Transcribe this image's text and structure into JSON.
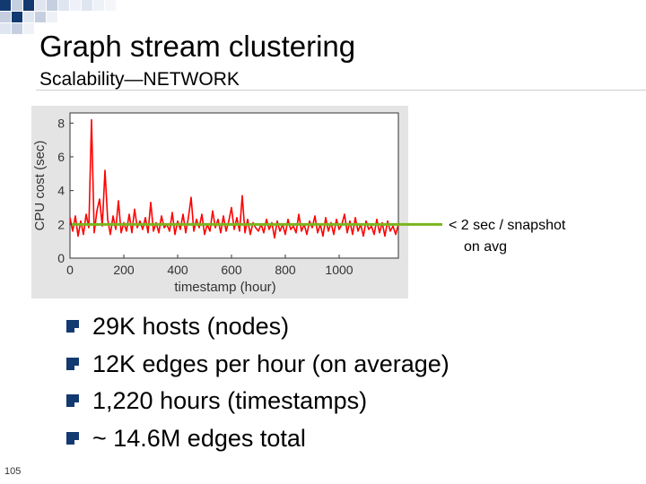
{
  "slide": {
    "title": "Graph stream clustering",
    "subtitle": "Scalability—NETWORK",
    "page_number": "105",
    "accent_color": "#123a70",
    "annotation": [
      "< 2 sec / snapshot",
      "on avg"
    ],
    "bullets": [
      "29K hosts (nodes)",
      "12K edges per hour (on average)",
      "1,220 hours (timestamps)",
      "~ 14.6M edges total"
    ]
  },
  "chart_data": {
    "type": "line",
    "xlabel": "timestamp (hour)",
    "ylabel": "CPU cost (sec)",
    "xlim": [
      0,
      1220
    ],
    "ylim": [
      0,
      8.6
    ],
    "x_ticks": [
      "0",
      "200",
      "400",
      "600",
      "800",
      "1000"
    ],
    "y_ticks": [
      "0",
      "2",
      "4",
      "6",
      "8"
    ],
    "grid": false,
    "series": [
      {
        "color": "#ff0000",
        "x": [
          0,
          10,
          20,
          30,
          40,
          50,
          60,
          70,
          80,
          90,
          100,
          110,
          120,
          130,
          140,
          150,
          160,
          170,
          180,
          190,
          200,
          210,
          220,
          230,
          240,
          250,
          260,
          270,
          280,
          290,
          300,
          310,
          320,
          330,
          340,
          350,
          360,
          370,
          380,
          390,
          400,
          410,
          420,
          430,
          440,
          450,
          460,
          470,
          480,
          490,
          500,
          510,
          520,
          530,
          540,
          550,
          560,
          570,
          580,
          590,
          600,
          610,
          620,
          630,
          640,
          650,
          660,
          670,
          680,
          690,
          700,
          710,
          720,
          730,
          740,
          750,
          760,
          770,
          780,
          790,
          800,
          810,
          820,
          830,
          840,
          850,
          860,
          870,
          880,
          890,
          900,
          910,
          920,
          930,
          940,
          950,
          960,
          970,
          980,
          990,
          1000,
          1010,
          1020,
          1030,
          1040,
          1050,
          1060,
          1070,
          1080,
          1090,
          1100,
          1110,
          1120,
          1130,
          1140,
          1150,
          1160,
          1170,
          1180,
          1190,
          1200,
          1210,
          1220
        ],
        "values": [
          2.4,
          1.6,
          2.5,
          1.3,
          2.2,
          1.4,
          2.6,
          1.8,
          8.2,
          1.5,
          2.8,
          3.5,
          1.9,
          5.2,
          2.3,
          1.4,
          2.5,
          1.7,
          3.4,
          1.5,
          2.1,
          1.6,
          2.6,
          1.5,
          2.9,
          1.8,
          2.2,
          1.7,
          2.4,
          1.5,
          3.3,
          1.6,
          2.1,
          1.5,
          2.5,
          1.8,
          2.0,
          1.6,
          2.7,
          1.4,
          2.2,
          1.7,
          2.6,
          1.5,
          2.4,
          3.6,
          1.6,
          2.3,
          1.8,
          2.6,
          1.4,
          2.0,
          1.6,
          2.8,
          1.8,
          2.3,
          1.5,
          2.5,
          1.6,
          2.2,
          3.0,
          1.7,
          2.4,
          1.6,
          3.7,
          1.5,
          2.3,
          1.4,
          2.1,
          1.8,
          1.6,
          2.0,
          1.5,
          2.3,
          1.7,
          2.1,
          1.2,
          2.2,
          1.6,
          2.0,
          1.4,
          2.3,
          1.7,
          1.9,
          1.5,
          2.6,
          1.6,
          2.0,
          1.4,
          2.2,
          1.8,
          2.5,
          1.5,
          2.0,
          1.3,
          2.4,
          1.6,
          2.1,
          1.4,
          2.3,
          1.7,
          2.0,
          2.6,
          1.5,
          2.2,
          1.4,
          2.4,
          1.6,
          2.0,
          1.3,
          2.2,
          1.7,
          1.9,
          1.4,
          2.3,
          1.5,
          2.1,
          1.3,
          2.2,
          1.6,
          1.9,
          1.4,
          2.0
        ]
      }
    ],
    "reference_line": {
      "y": 2.0,
      "color": "#7ab51d"
    }
  }
}
